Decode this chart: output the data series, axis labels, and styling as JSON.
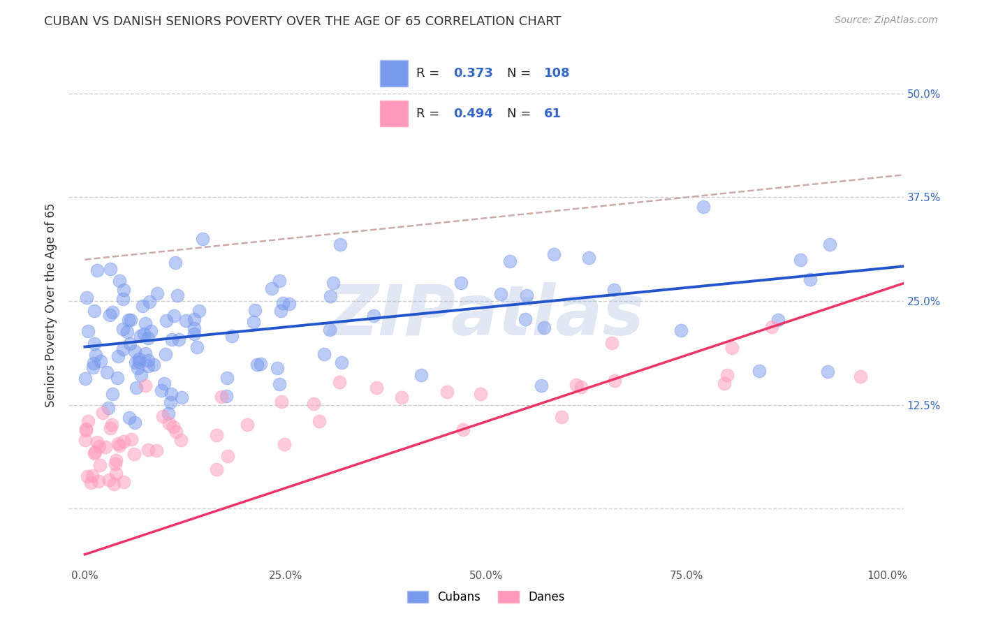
{
  "title": "CUBAN VS DANISH SENIORS POVERTY OVER THE AGE OF 65 CORRELATION CHART",
  "source": "Source: ZipAtlas.com",
  "ylabel": "Seniors Poverty Over the Age of 65",
  "background_color": "#ffffff",
  "plot_bg_color": "#ffffff",
  "title_color": "#333333",
  "title_fontsize": 13,
  "source_fontsize": 10,
  "ylabel_fontsize": 12,
  "legend_RN_color": "#3366cc",
  "legend_label_color": "#222222",
  "xlim": [
    -0.02,
    1.02
  ],
  "ylim": [
    -0.07,
    0.56
  ],
  "xticks": [
    0.0,
    0.25,
    0.5,
    0.75,
    1.0
  ],
  "xtick_labels": [
    "0.0%",
    "25.0%",
    "50.0%",
    "75.0%",
    "100.0%"
  ],
  "yticks": [
    0.0,
    0.125,
    0.25,
    0.375,
    0.5
  ],
  "ytick_labels_right": [
    "",
    "12.5%",
    "25.0%",
    "37.5%",
    "50.0%"
  ],
  "grid_color": "#cccccc",
  "R_cubans": 0.373,
  "N_cubans": 108,
  "R_danes": 0.494,
  "N_danes": 61,
  "cubans_scatter_color": "#7799ee",
  "danes_scatter_color": "#ff99bb",
  "cubans_line_color": "#2255cc",
  "danes_line_color": "#ee3366",
  "trendline_color": "#ccaaaa",
  "watermark_text": "ZIPatlas",
  "watermark_color": "#aabbdd",
  "watermark_alpha": 0.35,
  "cubans_line_intercept": 0.195,
  "cubans_line_slope": 0.095,
  "danes_line_intercept": -0.055,
  "danes_line_slope": 0.32,
  "dashed_line_intercept": 0.3,
  "dashed_line_slope": 0.1
}
